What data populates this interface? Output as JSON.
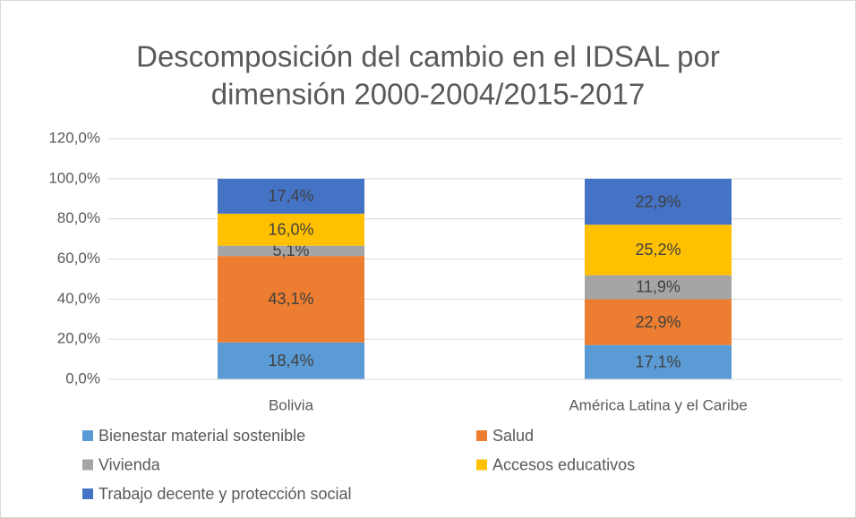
{
  "chart_data": {
    "type": "stacked_bar",
    "title": [
      "Descomposición del cambio en el IDSAL por",
      "dimensión 2000-2004/2015-2017"
    ],
    "categories": [
      "Bolivia",
      "América Latina y el Caribe"
    ],
    "series": [
      {
        "name": "Bienestar material sostenible",
        "color": "#5B9BD5",
        "values": [
          18.4,
          17.1
        ],
        "value_labels": [
          "18,4%",
          "17,1%"
        ]
      },
      {
        "name": "Salud",
        "color": "#ED7D31",
        "values": [
          43.1,
          22.9
        ],
        "value_labels": [
          "43,1%",
          "22,9%"
        ]
      },
      {
        "name": "Vivienda",
        "color": "#A5A5A5",
        "values": [
          5.1,
          11.9
        ],
        "value_labels": [
          "5,1%",
          "11,9%"
        ]
      },
      {
        "name": "Accesos educativos",
        "color": "#FFC000",
        "values": [
          16.0,
          25.2
        ],
        "value_labels": [
          "16,0%",
          "25,2%"
        ]
      },
      {
        "name": "Trabajo decente y protección social",
        "color": "#4472C4",
        "values": [
          17.4,
          22.9
        ],
        "value_labels": [
          "17,4%",
          "22,9%"
        ]
      }
    ],
    "ylim": [
      0,
      120
    ],
    "yticks": [
      {
        "value": 0,
        "label": "0,0%"
      },
      {
        "value": 20,
        "label": "20,0%"
      },
      {
        "value": 40,
        "label": "40,0%"
      },
      {
        "value": 60,
        "label": "60,0%"
      },
      {
        "value": 80,
        "label": "80,0%"
      },
      {
        "value": 100,
        "label": "100,0%"
      },
      {
        "value": 120,
        "label": "120,0%"
      }
    ],
    "grid": true
  }
}
